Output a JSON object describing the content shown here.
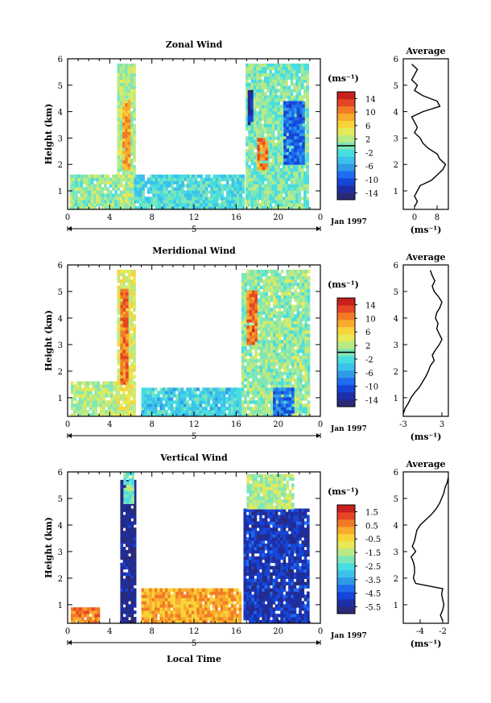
{
  "figure": {
    "date_label": "Jan 1997",
    "day_label": "5",
    "x_axis_label": "Local Time"
  },
  "chart_data": [
    {
      "type": "heatmap",
      "title": "Zonal Wind",
      "ylabel": "Height (km)",
      "xlim": [
        0,
        24
      ],
      "ylim": [
        0.3,
        6
      ],
      "xticks": [
        "0",
        "4",
        "8",
        "12",
        "16",
        "20",
        "0"
      ],
      "yticks": [
        "1",
        "2",
        "3",
        "4",
        "5",
        "6"
      ],
      "colorbar": {
        "unit": "(ms⁻¹)",
        "range": [
          -16,
          16
        ],
        "ticks": [
          "14",
          "10",
          "6",
          "2",
          "-2",
          "-6",
          "-10",
          "-14"
        ],
        "zero_line": 0
      },
      "cells": [
        {
          "x0": 0.2,
          "x1": 4.6,
          "y0": 0.3,
          "y1": 1.6,
          "v": 1
        },
        {
          "x0": 4.7,
          "x1": 6.3,
          "y0": 0.3,
          "y1": 5.8,
          "v": 2
        },
        {
          "x0": 5.2,
          "x1": 5.8,
          "y0": 1.8,
          "y1": 4.4,
          "v": 9
        },
        {
          "x0": 6.3,
          "x1": 16.7,
          "y0": 0.3,
          "y1": 1.6,
          "v": -2
        },
        {
          "x0": 16.9,
          "x1": 22.9,
          "y0": 0.3,
          "y1": 5.8,
          "v": 0
        },
        {
          "x0": 18.0,
          "x1": 18.8,
          "y0": 1.8,
          "y1": 3.0,
          "v": 10
        },
        {
          "x0": 20.5,
          "x1": 22.3,
          "y0": 2.0,
          "y1": 4.4,
          "v": -9
        },
        {
          "x0": 17.1,
          "x1": 17.6,
          "y0": 3.5,
          "y1": 4.8,
          "v": -13
        }
      ],
      "average_profile": {
        "title": "Average",
        "xlabel": "(ms⁻¹)",
        "xticks": [
          "0",
          "8"
        ],
        "xlim": [
          -4,
          12
        ],
        "height": [
          0.4,
          0.6,
          0.8,
          1.0,
          1.2,
          1.4,
          1.6,
          1.8,
          2.0,
          2.2,
          2.4,
          2.6,
          2.8,
          3.0,
          3.2,
          3.4,
          3.6,
          3.8,
          4.0,
          4.2,
          4.4,
          4.6,
          4.8,
          5.0,
          5.2,
          5.4,
          5.6,
          5.8
        ],
        "values": [
          0,
          1,
          0,
          1,
          2,
          6,
          8,
          10,
          11,
          9,
          8,
          5,
          3,
          2,
          0,
          1,
          0,
          -1,
          3,
          9,
          8,
          3,
          0,
          1,
          -1,
          0,
          1,
          -1
        ]
      }
    },
    {
      "type": "heatmap",
      "title": "Meridional Wind",
      "ylabel": "Height (km)",
      "xlim": [
        0,
        24
      ],
      "ylim": [
        0.3,
        6
      ],
      "xticks": [
        "0",
        "4",
        "8",
        "12",
        "16",
        "20",
        "0"
      ],
      "yticks": [
        "1",
        "2",
        "3",
        "4",
        "5",
        "6"
      ],
      "colorbar": {
        "unit": "(ms⁻¹)",
        "range": [
          -16,
          16
        ],
        "ticks": [
          "14",
          "10",
          "6",
          "2",
          "-2",
          "-6",
          "-10",
          "-14"
        ],
        "zero_line": 0
      },
      "cells": [
        {
          "x0": 0.3,
          "x1": 4.6,
          "y0": 0.3,
          "y1": 1.6,
          "v": 2
        },
        {
          "x0": 4.7,
          "x1": 6.3,
          "y0": 0.3,
          "y1": 5.8,
          "v": 4
        },
        {
          "x0": 5.0,
          "x1": 5.6,
          "y0": 1.5,
          "y1": 5.0,
          "v": 11
        },
        {
          "x0": 7.0,
          "x1": 16.5,
          "y0": 0.3,
          "y1": 1.3,
          "v": -3
        },
        {
          "x0": 16.5,
          "x1": 22.8,
          "y0": 0.3,
          "y1": 5.8,
          "v": 1
        },
        {
          "x0": 17.0,
          "x1": 17.8,
          "y0": 3.0,
          "y1": 5.0,
          "v": 11
        },
        {
          "x0": 19.5,
          "x1": 21.5,
          "y0": 0.3,
          "y1": 1.3,
          "v": -8
        }
      ],
      "average_profile": {
        "title": "Average",
        "xlabel": "(ms⁻¹)",
        "xticks": [
          "-3",
          "3"
        ],
        "xlim": [
          -3,
          4
        ],
        "height": [
          0.4,
          0.6,
          0.8,
          1.0,
          1.2,
          1.4,
          1.6,
          1.8,
          2.0,
          2.2,
          2.4,
          2.6,
          2.8,
          3.0,
          3.2,
          3.4,
          3.6,
          3.8,
          4.0,
          4.2,
          4.4,
          4.6,
          4.8,
          5.0,
          5.2,
          5.4,
          5.6,
          5.8
        ],
        "values": [
          -3,
          -2.7,
          -2.2,
          -1.8,
          -1.2,
          -0.5,
          0,
          0.5,
          0.9,
          1.2,
          1.8,
          1.5,
          2.0,
          2.6,
          3.0,
          2.6,
          2.2,
          2.4,
          2.0,
          2.2,
          2.7,
          3.0,
          2.5,
          1.8,
          1.5,
          1.9,
          1.5,
          1.2
        ]
      }
    },
    {
      "type": "heatmap",
      "title": "Vertical Wind",
      "ylabel": "Height (km)",
      "xlim": [
        0,
        24
      ],
      "ylim": [
        0.3,
        6
      ],
      "xticks": [
        "0",
        "4",
        "8",
        "12",
        "16",
        "20",
        "0"
      ],
      "yticks": [
        "1",
        "2",
        "3",
        "4",
        "5",
        "6"
      ],
      "colorbar": {
        "unit": "(ms⁻¹)",
        "range": [
          -6,
          2
        ],
        "ticks": [
          "1.5",
          "0.5",
          "-0.5",
          "-1.5",
          "-2.5",
          "-3.5",
          "-4.5",
          "-5.5"
        ]
      },
      "cells": [
        {
          "x0": 5.0,
          "x1": 6.3,
          "y0": 0.3,
          "y1": 5.6,
          "v": -5.6
        },
        {
          "x0": 5.3,
          "x1": 6.1,
          "y0": 4.8,
          "y1": 5.9,
          "v": -2.0
        },
        {
          "x0": 7.0,
          "x1": 16.5,
          "y0": 0.3,
          "y1": 1.6,
          "v": 0.2
        },
        {
          "x0": 0.3,
          "x1": 3.0,
          "y0": 0.3,
          "y1": 0.9,
          "v": 0.5
        },
        {
          "x0": 16.7,
          "x1": 22.9,
          "y0": 0.3,
          "y1": 4.6,
          "v": -5.0
        },
        {
          "x0": 17.0,
          "x1": 21.5,
          "y0": 4.6,
          "y1": 5.9,
          "v": -1.5
        }
      ],
      "average_profile": {
        "title": "Average",
        "xlabel": "(ms⁻¹)",
        "xticks": [
          "-4",
          "-2"
        ],
        "xlim": [
          -5.5,
          -1.5
        ],
        "height": [
          0.4,
          0.6,
          0.8,
          1.0,
          1.2,
          1.4,
          1.6,
          1.8,
          2.0,
          2.2,
          2.4,
          2.6,
          2.8,
          3.0,
          3.2,
          3.4,
          3.6,
          3.8,
          4.0,
          4.2,
          4.4,
          4.6,
          4.8,
          5.0,
          5.2,
          5.4,
          5.6,
          5.8
        ],
        "values": [
          -2.0,
          -2.2,
          -2.0,
          -1.9,
          -2.0,
          -2.1,
          -2.0,
          -4.4,
          -4.6,
          -4.5,
          -4.5,
          -4.6,
          -4.8,
          -4.4,
          -4.7,
          -4.5,
          -4.4,
          -4.3,
          -4.0,
          -3.5,
          -3.0,
          -2.6,
          -2.3,
          -2.1,
          -1.9,
          -1.8,
          -1.6,
          -1.5
        ]
      }
    }
  ]
}
